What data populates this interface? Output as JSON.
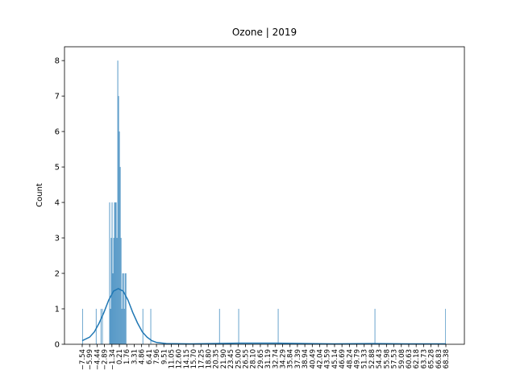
{
  "chart_data": {
    "type": "histogram",
    "title": "Ozone | 2019",
    "ylabel": "Count",
    "color": "#1f77b4",
    "bins": [
      -7.54,
      -7.4,
      -4.7,
      -4.55,
      -3.7,
      -3.55,
      -3.4,
      -3.25,
      -1.9,
      -1.73,
      -1.56,
      -1.39,
      -1.22,
      -1.05,
      -0.88,
      -0.71,
      -0.54,
      -0.37,
      -0.2,
      -0.03,
      0.14,
      0.31,
      0.48,
      0.65,
      0.82,
      0.99,
      1.16,
      1.33,
      1.5,
      1.67,
      5.05,
      5.2,
      6.7,
      6.85,
      21.05,
      21.2,
      25.05,
      25.2,
      33.3,
      33.45,
      53.5,
      53.65,
      68.25,
      68.38
    ],
    "counts": [
      1,
      0,
      1,
      0,
      1,
      0,
      1,
      0,
      4,
      1,
      3,
      4,
      2,
      3,
      4,
      4,
      4,
      3,
      8,
      7,
      6,
      5,
      3,
      1,
      2,
      2,
      1,
      2,
      2,
      0,
      1,
      0,
      1,
      0,
      1,
      0,
      1,
      0,
      1,
      0,
      1,
      0,
      1
    ],
    "kde": {
      "x": [
        -7.54,
        -6,
        -5,
        -4,
        -3,
        -2,
        -1,
        0,
        1,
        2,
        3,
        4,
        5,
        6,
        7,
        8,
        10,
        15,
        25,
        33,
        45,
        53,
        60,
        68.38
      ],
      "y": [
        0.1,
        0.2,
        0.35,
        0.6,
        0.9,
        1.25,
        1.5,
        1.57,
        1.5,
        1.25,
        0.9,
        0.6,
        0.35,
        0.2,
        0.1,
        0.05,
        0.02,
        0.01,
        0.03,
        0.03,
        0.01,
        0.02,
        0.01,
        0.01
      ]
    },
    "xlim": [
      -11.24,
      72.25
    ],
    "ylim": [
      0,
      8.39
    ],
    "yticks": [
      0,
      1,
      2,
      3,
      4,
      5,
      6,
      7,
      8
    ],
    "xticks": [
      {
        "value": -7.54,
        "label": "−7.54"
      },
      {
        "value": -5.99,
        "label": "−5.99"
      },
      {
        "value": -4.44,
        "label": "−4.44"
      },
      {
        "value": -2.89,
        "label": "−2.89"
      },
      {
        "value": -1.34,
        "label": "−1.34"
      },
      0.21,
      1.76,
      3.31,
      4.86,
      6.41,
      7.96,
      9.51,
      11.05,
      {
        "value": 12.6,
        "label": "12.60"
      },
      14.15,
      {
        "value": 15.7,
        "label": "15.70"
      },
      17.25,
      {
        "value": 18.8,
        "label": "18.80"
      },
      20.35,
      {
        "value": 21.9,
        "label": "21.90"
      },
      23.45,
      {
        "value": 25,
        "label": "25.00"
      },
      26.55,
      {
        "value": 28.1,
        "label": "28.10"
      },
      29.65,
      31.19,
      32.74,
      34.29,
      35.84,
      37.39,
      38.94,
      40.49,
      42.04,
      43.59,
      45.14,
      46.69,
      48.24,
      49.79,
      51.33,
      52.88,
      54.43,
      55.98,
      57.53,
      59.08,
      60.63,
      62.18,
      63.73,
      65.28,
      66.83,
      68.38
    ]
  }
}
